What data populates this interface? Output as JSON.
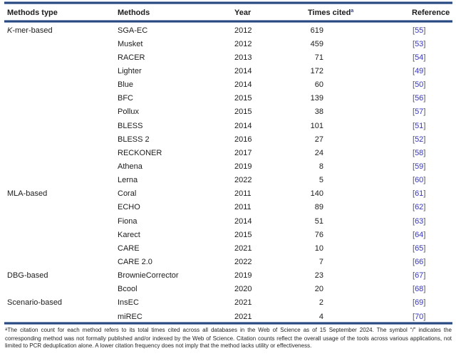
{
  "table": {
    "header": {
      "methods_type": "Methods type",
      "methods": "Methods",
      "year": "Year",
      "times_cited": "Times cited",
      "times_cited_sup": "a",
      "reference": "Reference"
    },
    "reference_brackets": {
      "open": "[",
      "close": "]"
    },
    "accent_colors": {
      "rule_navy": "#27497f",
      "reference_blue": "#3434c4"
    },
    "groups": [
      {
        "label": "K-mer-based",
        "italic_first_char": true,
        "rows": [
          {
            "method": "SGA-EC",
            "year": "2012",
            "times_cited": "619",
            "reference": "55"
          },
          {
            "method": "Musket",
            "year": "2012",
            "times_cited": "459",
            "reference": "53"
          },
          {
            "method": "RACER",
            "year": "2013",
            "times_cited": "71",
            "reference": "54"
          },
          {
            "method": "Lighter",
            "year": "2014",
            "times_cited": "172",
            "reference": "49"
          },
          {
            "method": "Blue",
            "year": "2014",
            "times_cited": "60",
            "reference": "50"
          },
          {
            "method": "BFC",
            "year": "2015",
            "times_cited": "139",
            "reference": "56"
          },
          {
            "method": "Pollux",
            "year": "2015",
            "times_cited": "38",
            "reference": "57"
          },
          {
            "method": "BLESS",
            "year": "2014",
            "times_cited": "101",
            "reference": "51"
          },
          {
            "method": "BLESS 2",
            "year": "2016",
            "times_cited": "27",
            "reference": "52"
          },
          {
            "method": "RECKONER",
            "year": "2017",
            "times_cited": "24",
            "reference": "58"
          },
          {
            "method": "Athena",
            "year": "2019",
            "times_cited": "8",
            "reference": "59"
          },
          {
            "method": "Lerna",
            "year": "2022",
            "times_cited": "5",
            "reference": "60"
          }
        ]
      },
      {
        "label": "MLA-based",
        "italic_first_char": false,
        "rows": [
          {
            "method": "Coral",
            "year": "2011",
            "times_cited": "140",
            "reference": "61"
          },
          {
            "method": "ECHO",
            "year": "2011",
            "times_cited": "89",
            "reference": "62"
          },
          {
            "method": "Fiona",
            "year": "2014",
            "times_cited": "51",
            "reference": "63"
          },
          {
            "method": "Karect",
            "year": "2015",
            "times_cited": "76",
            "reference": "64"
          },
          {
            "method": "CARE",
            "year": "2021",
            "times_cited": "10",
            "reference": "65"
          },
          {
            "method": "CARE 2.0",
            "year": "2022",
            "times_cited": "7",
            "reference": "66"
          }
        ]
      },
      {
        "label": "DBG-based",
        "italic_first_char": false,
        "rows": [
          {
            "method": "BrownieCorrector",
            "year": "2019",
            "times_cited": "23",
            "reference": "67"
          },
          {
            "method": "Bcool",
            "year": "2020",
            "times_cited": "20",
            "reference": "68"
          }
        ]
      },
      {
        "label": "Scenario-based",
        "italic_first_char": false,
        "rows": [
          {
            "method": "InsEC",
            "year": "2021",
            "times_cited": "2",
            "reference": "69"
          },
          {
            "method": "miREC",
            "year": "2021",
            "times_cited": "4",
            "reference": "70"
          }
        ]
      }
    ],
    "footnote": {
      "marker": "a",
      "text": "The citation count for each method refers to its total times cited across all databases in the Web of Science as of 15 September 2024. The symbol “/” indicates the corresponding method was not formally published and/or indexed by the Web of Science. Citation counts reflect the overall usage of the tools across various applications, not limited to PCR deduplication alone. A lower citation frequency does not imply that the method lacks utility or effectiveness."
    }
  }
}
